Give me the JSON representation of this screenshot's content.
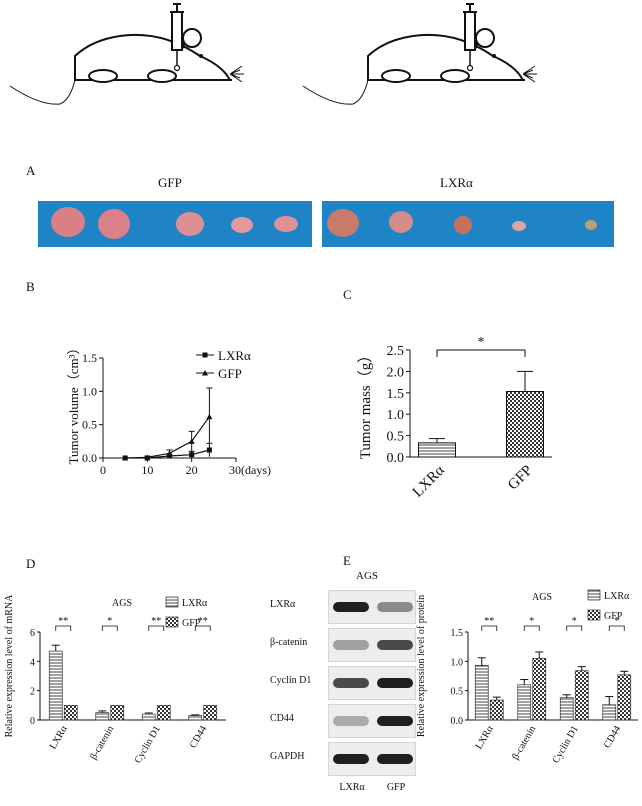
{
  "panels": {
    "a_label": "A",
    "b_label": "B",
    "c_label": "C",
    "d_label": "D",
    "e_label": "E"
  },
  "tumor_photo": {
    "left_label": "GFP",
    "right_label": "LXRα",
    "background_color": "#1f84c6",
    "tumor_color": "#d97f86"
  },
  "western_blot": {
    "title": "AGS",
    "rows": [
      "LXRα",
      "β-catenin",
      "Cyclin D1",
      "CD44",
      "GAPDH"
    ],
    "lanes": [
      "LXRα",
      "GFP"
    ],
    "intensity": [
      [
        0.95,
        0.45
      ],
      [
        0.35,
        0.75
      ],
      [
        0.75,
        0.95
      ],
      [
        0.3,
        0.95
      ],
      [
        0.95,
        0.95
      ]
    ]
  },
  "colors": {
    "axis": "#111111",
    "hatch": "#555555"
  },
  "chart_data": [
    {
      "type": "line",
      "panel": "B",
      "ylabel": "Tumor volume（cm³）",
      "xlabel_suffix": "30(days)",
      "xlim": [
        0,
        30
      ],
      "ylim": [
        0,
        1.5
      ],
      "xticks": [
        0,
        10,
        20
      ],
      "yticks": [
        0.0,
        0.5,
        1.0,
        1.5
      ],
      "legend_position": "top-right",
      "series": [
        {
          "name": "LXRα",
          "marker": "square",
          "x": [
            5,
            10,
            15,
            20,
            24
          ],
          "y": [
            0.0,
            0.0,
            0.03,
            0.05,
            0.12
          ],
          "err": [
            0.0,
            0.01,
            0.02,
            0.05,
            0.1
          ]
        },
        {
          "name": "GFP",
          "marker": "triangle",
          "x": [
            5,
            10,
            15,
            20,
            24
          ],
          "y": [
            0.0,
            0.01,
            0.07,
            0.25,
            0.62
          ],
          "err": [
            0.0,
            0.02,
            0.05,
            0.15,
            0.43
          ]
        }
      ]
    },
    {
      "type": "bar",
      "panel": "C",
      "ylabel": "Tumor mass（g）",
      "categories": [
        "LXRα",
        "GFP"
      ],
      "values": [
        0.33,
        1.53
      ],
      "errors": [
        0.1,
        0.47
      ],
      "patterns": [
        "horizontal",
        "check"
      ],
      "ylim": [
        0,
        2.5
      ],
      "yticks": [
        0.0,
        0.5,
        1.0,
        1.5,
        2.0,
        2.5
      ],
      "significance": "*"
    },
    {
      "type": "bar",
      "panel": "D",
      "title": "AGS",
      "ylabel": "Relative expression level of  mRNA",
      "categories": [
        "LXRα",
        "β-catenin",
        "Cyclin D1",
        "CD44"
      ],
      "ylim": [
        0,
        6
      ],
      "yticks": [
        0,
        2,
        4,
        6
      ],
      "legend_position": "top-right",
      "series": [
        {
          "name": "LXRα",
          "pattern": "horizontal",
          "values": [
            4.7,
            0.5,
            0.4,
            0.3
          ],
          "errors": [
            0.4,
            0.12,
            0.08,
            0.05
          ]
        },
        {
          "name": "GFP",
          "pattern": "check",
          "values": [
            1.0,
            1.0,
            1.0,
            1.0
          ],
          "errors": [
            0,
            0,
            0,
            0
          ]
        }
      ],
      "significance": [
        "**",
        "*",
        "**",
        "**"
      ]
    },
    {
      "type": "bar",
      "panel": "E",
      "title": "AGS",
      "ylabel": "Relative expression level of protein",
      "categories": [
        "LXRα",
        "β-catenin",
        "Cyclin D1",
        "CD44"
      ],
      "ylim": [
        0,
        1.5
      ],
      "yticks": [
        0.0,
        0.5,
        1.0,
        1.5
      ],
      "legend_position": "top-right",
      "series": [
        {
          "name": "LXRα",
          "pattern": "horizontal",
          "values": [
            0.93,
            0.6,
            0.38,
            0.26
          ],
          "errors": [
            0.13,
            0.09,
            0.05,
            0.14
          ]
        },
        {
          "name": "GFP",
          "pattern": "check",
          "values": [
            0.34,
            1.05,
            0.84,
            0.77
          ],
          "errors": [
            0.05,
            0.11,
            0.07,
            0.06
          ]
        }
      ],
      "significance": [
        "**",
        "*",
        "*",
        "*"
      ]
    }
  ]
}
